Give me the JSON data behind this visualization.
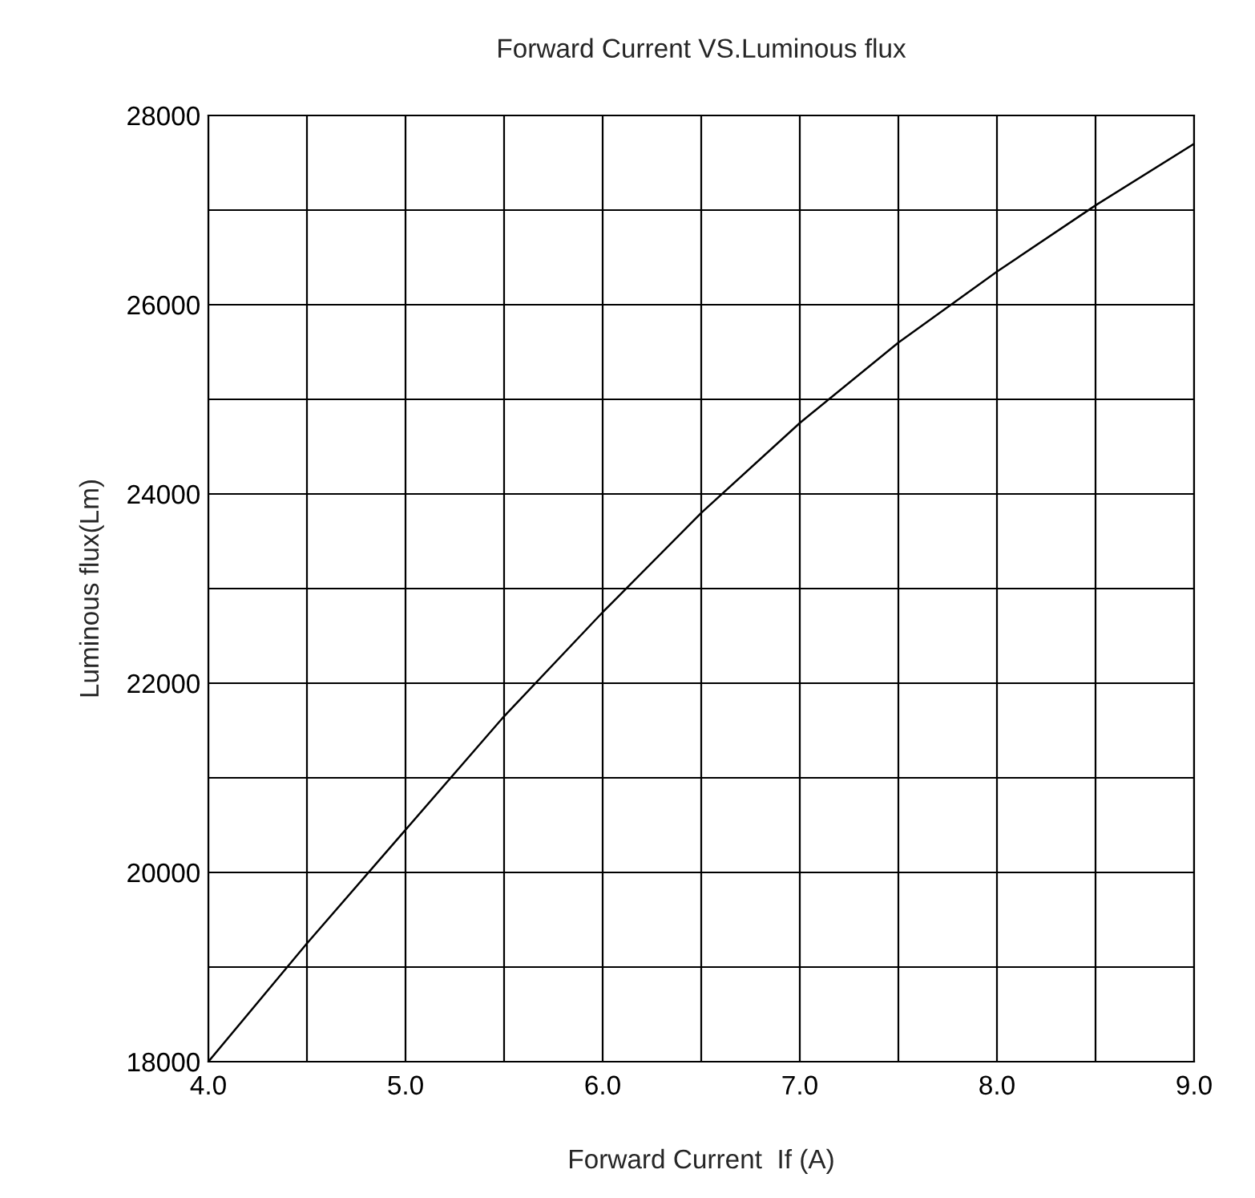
{
  "chart_data": {
    "type": "line",
    "title": "Forward Current VS.Luminous flux",
    "xlabel": "Forward Current  If (A)",
    "ylabel": "Luminous flux(Lm)",
    "x": [
      4.0,
      4.5,
      5.0,
      5.5,
      6.0,
      6.5,
      7.0,
      7.5,
      8.0,
      8.5,
      9.0
    ],
    "series": [
      {
        "color": "#000000",
        "values": [
          18000,
          19250,
          20450,
          21650,
          22750,
          23800,
          24750,
          25600,
          26350,
          27050,
          27700
        ]
      }
    ],
    "xlim": [
      4.0,
      9.0
    ],
    "ylim": [
      18000,
      28000
    ],
    "xticks": [
      {
        "value": 4.0,
        "label": "4.0"
      },
      {
        "value": 4.5,
        "label": null
      },
      {
        "value": 5.0,
        "label": "5.0"
      },
      {
        "value": 5.5,
        "label": null
      },
      {
        "value": 6.0,
        "label": "6.0"
      },
      {
        "value": 6.5,
        "label": null
      },
      {
        "value": 7.0,
        "label": "7.0"
      },
      {
        "value": 7.5,
        "label": null
      },
      {
        "value": 8.0,
        "label": "8.0"
      },
      {
        "value": 8.5,
        "label": null
      },
      {
        "value": 9.0,
        "label": "9.0"
      }
    ],
    "yticks": [
      18000,
      {
        "value": 19000,
        "label": null
      },
      20000,
      {
        "value": 21000,
        "label": null
      },
      22000,
      {
        "value": 23000,
        "label": null
      },
      24000,
      {
        "value": 25000,
        "label": null
      },
      26000,
      {
        "value": 27000,
        "label": null
      },
      28000
    ],
    "grid": true,
    "legend": false,
    "marker": "none",
    "line_style": "solid"
  }
}
